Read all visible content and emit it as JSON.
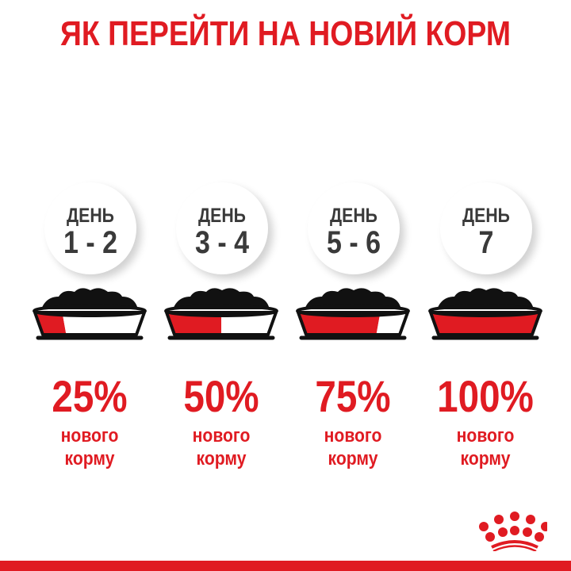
{
  "title": "ЯК ПЕРЕЙТИ НА НОВИЙ КОРМ",
  "brand_color": "#e01b22",
  "steps": [
    {
      "day_label": "ДЕНЬ",
      "days": "1 - 2",
      "percent_text": "25%",
      "new_food_fraction": 0.25,
      "label_line1": "нового",
      "label_line2": "корму"
    },
    {
      "day_label": "ДЕНЬ",
      "days": "3 - 4",
      "percent_text": "50%",
      "new_food_fraction": 0.5,
      "label_line1": "нового",
      "label_line2": "корму"
    },
    {
      "day_label": "ДЕНЬ",
      "days": "5 - 6",
      "percent_text": "75%",
      "new_food_fraction": 0.75,
      "label_line1": "нового",
      "label_line2": "корму"
    },
    {
      "day_label": "ДЕНЬ",
      "days": "7",
      "percent_text": "100%",
      "new_food_fraction": 1.0,
      "label_line1": "нового",
      "label_line2": "корму"
    }
  ],
  "logo": {
    "icon": "royal-canin-crown-icon"
  }
}
